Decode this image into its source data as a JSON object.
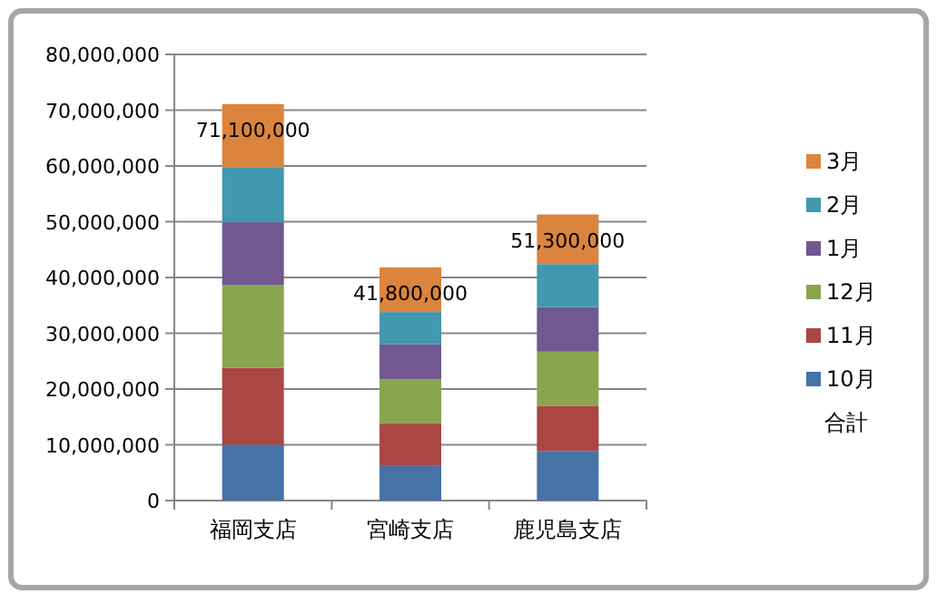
{
  "chart_data": {
    "type": "bar",
    "stacked": true,
    "categories": [
      "福岡支店",
      "宮崎支店",
      "鹿児島支店"
    ],
    "series": [
      {
        "name": "10月",
        "color": "#4572a7",
        "values": [
          10000000,
          6200000,
          8900000
        ]
      },
      {
        "name": "11月",
        "color": "#aa4643",
        "values": [
          13800000,
          7600000,
          8100000
        ]
      },
      {
        "name": "12月",
        "color": "#89a54e",
        "values": [
          14800000,
          8000000,
          9700000
        ]
      },
      {
        "name": "1月",
        "color": "#71588f",
        "values": [
          11300000,
          6200000,
          8000000
        ]
      },
      {
        "name": "2月",
        "color": "#4198af",
        "values": [
          9900000,
          5800000,
          7700000
        ]
      },
      {
        "name": "3月",
        "color": "#db843d",
        "values": [
          11300000,
          8000000,
          8900000
        ]
      },
      {
        "name": "合計",
        "type": "line",
        "values": [
          null,
          null,
          null
        ]
      }
    ],
    "totals": [
      "71,100,000",
      "41,800,000",
      "51,300,000"
    ],
    "ylim": [
      0,
      80000000
    ],
    "yticks": [
      {
        "value": 0,
        "label": "0"
      },
      {
        "value": 10000000,
        "label": "10,000,000"
      },
      {
        "value": 20000000,
        "label": "20,000,000"
      },
      {
        "value": 30000000,
        "label": "30,000,000"
      },
      {
        "value": 40000000,
        "label": "40,000,000"
      },
      {
        "value": 50000000,
        "label": "50,000,000"
      },
      {
        "value": 60000000,
        "label": "60,000,000"
      },
      {
        "value": 70000000,
        "label": "70,000,000"
      },
      {
        "value": 80000000,
        "label": "80,000,000"
      }
    ],
    "grid": "y",
    "legend": "right"
  }
}
